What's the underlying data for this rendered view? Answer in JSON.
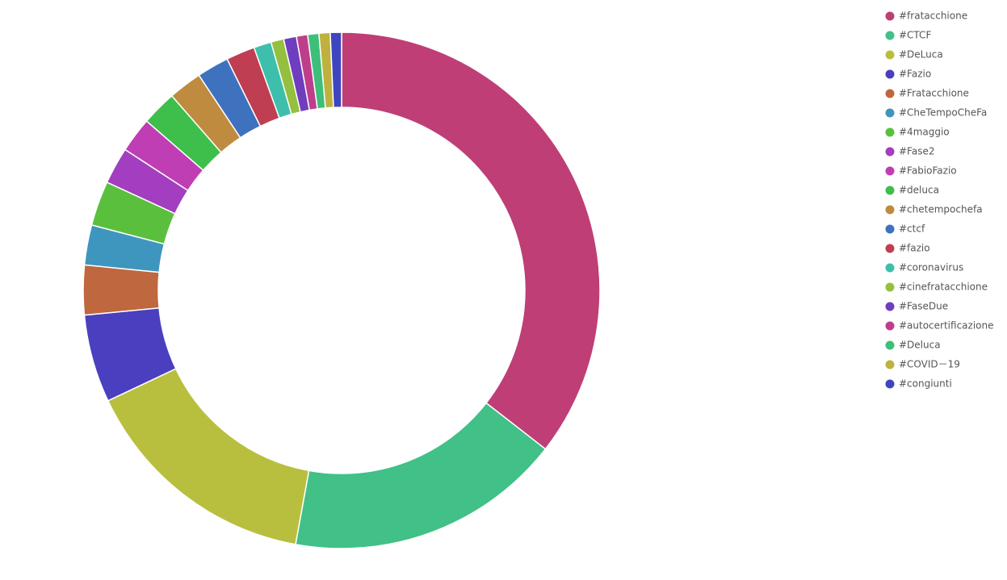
{
  "chart_data": {
    "type": "doughnut",
    "legend": "top-right",
    "categories": [
      "#fratacchione",
      "#CTCF",
      "#DeLuca",
      "#Fazio",
      "#Fratacchione",
      "#CheTempoCheFa",
      "#4maggio",
      "#Fase2",
      "#FabioFazio",
      "#deluca",
      "#chetempochefa",
      "#ctcf",
      "#fazio",
      "#coronavirus",
      "#cinefratacchione",
      "#FaseDue",
      "#autocertificazione",
      "#Deluca",
      "#COVID－19",
      "#congiunti"
    ],
    "values": [
      35.5,
      17.3,
      15.1,
      5.5,
      3.1,
      2.5,
      2.8,
      2.3,
      2.2,
      2.2,
      2.1,
      2.0,
      1.8,
      1.1,
      0.8,
      0.8,
      0.7,
      0.7,
      0.7,
      0.7
    ],
    "colors": [
      "#bf3e76",
      "#41c088",
      "#b8bf3e",
      "#4a3fbf",
      "#bf673e",
      "#3e96bf",
      "#5bbf3e",
      "#a23ebf",
      "#bf3eb3",
      "#3ebf4b",
      "#bf8b3e",
      "#3e72bf",
      "#bf3e52",
      "#3ebfac",
      "#95bf3e",
      "#6f3ebf",
      "#bf3e8b",
      "#3ebf79",
      "#bfb13e",
      "#3e45bf"
    ]
  }
}
